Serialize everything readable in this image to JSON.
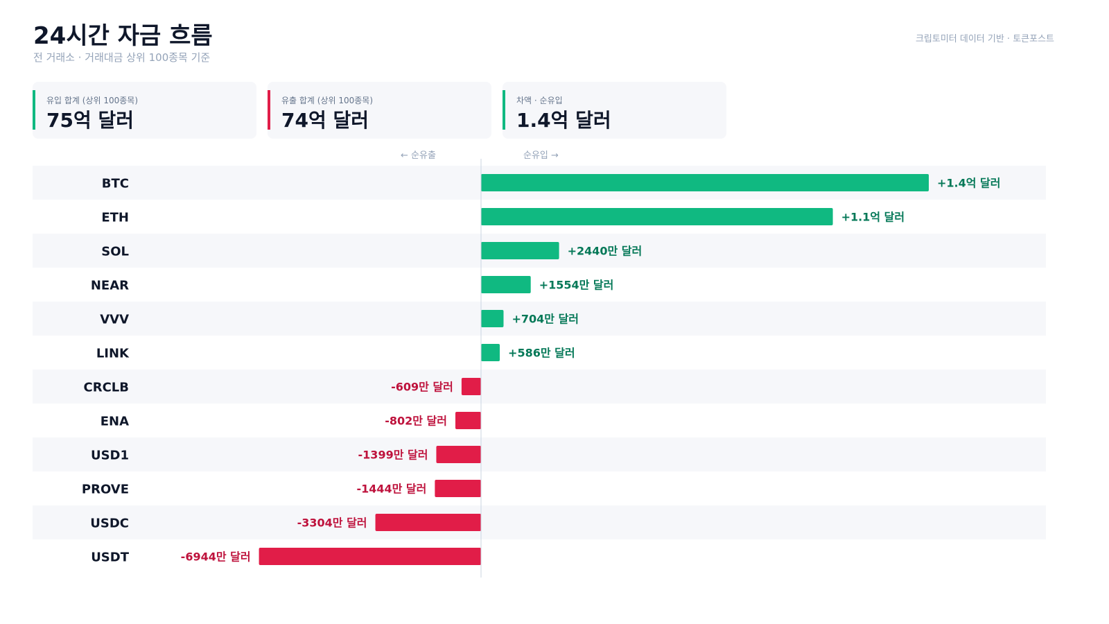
{
  "header": {
    "title": "24시간 자금 흐름",
    "subtitle": "전 거래소 · 거래대금 상위 100종목 기준",
    "source": "크립토미터 데이터 기반 · 토큰포스트"
  },
  "cards": [
    {
      "label": "유입 합계 (상위 100종목)",
      "value": "75억 달러",
      "accent": "#10b981"
    },
    {
      "label": "유출 합계 (상위 100종목)",
      "value": "74억 달러",
      "accent": "#e11d48"
    },
    {
      "label": "차액 · 순유입",
      "value": "1.4억 달러",
      "accent": "#10b981"
    }
  ],
  "direction": {
    "left": "← 순유출",
    "right": "순유입 →"
  },
  "colors": {
    "inflow": "#10b981",
    "outflow": "#e11d48",
    "inflow_text": "#047857",
    "outflow_text": "#be123c",
    "row_alt": "#f6f7fa"
  },
  "chart_data": {
    "type": "bar",
    "orientation": "horizontal",
    "unit": "만 달러",
    "categories": [
      "BTC",
      "ETH",
      "SOL",
      "NEAR",
      "VVV",
      "LINK",
      "CRCLB",
      "ENA",
      "USD1",
      "PROVE",
      "USDC",
      "USDT"
    ],
    "values": [
      14000,
      11000,
      2440,
      1554,
      704,
      586,
      -609,
      -802,
      -1399,
      -1444,
      -3304,
      -6944
    ],
    "labels": [
      "+1.4억 달러",
      "+1.1억 달러",
      "+2440만 달러",
      "+1554만 달러",
      "+704만 달러",
      "+586만 달러",
      "-609만 달러",
      "-802만 달러",
      "-1399만 달러",
      "-1444만 달러",
      "-3304만 달러",
      "-6944만 달러"
    ]
  }
}
